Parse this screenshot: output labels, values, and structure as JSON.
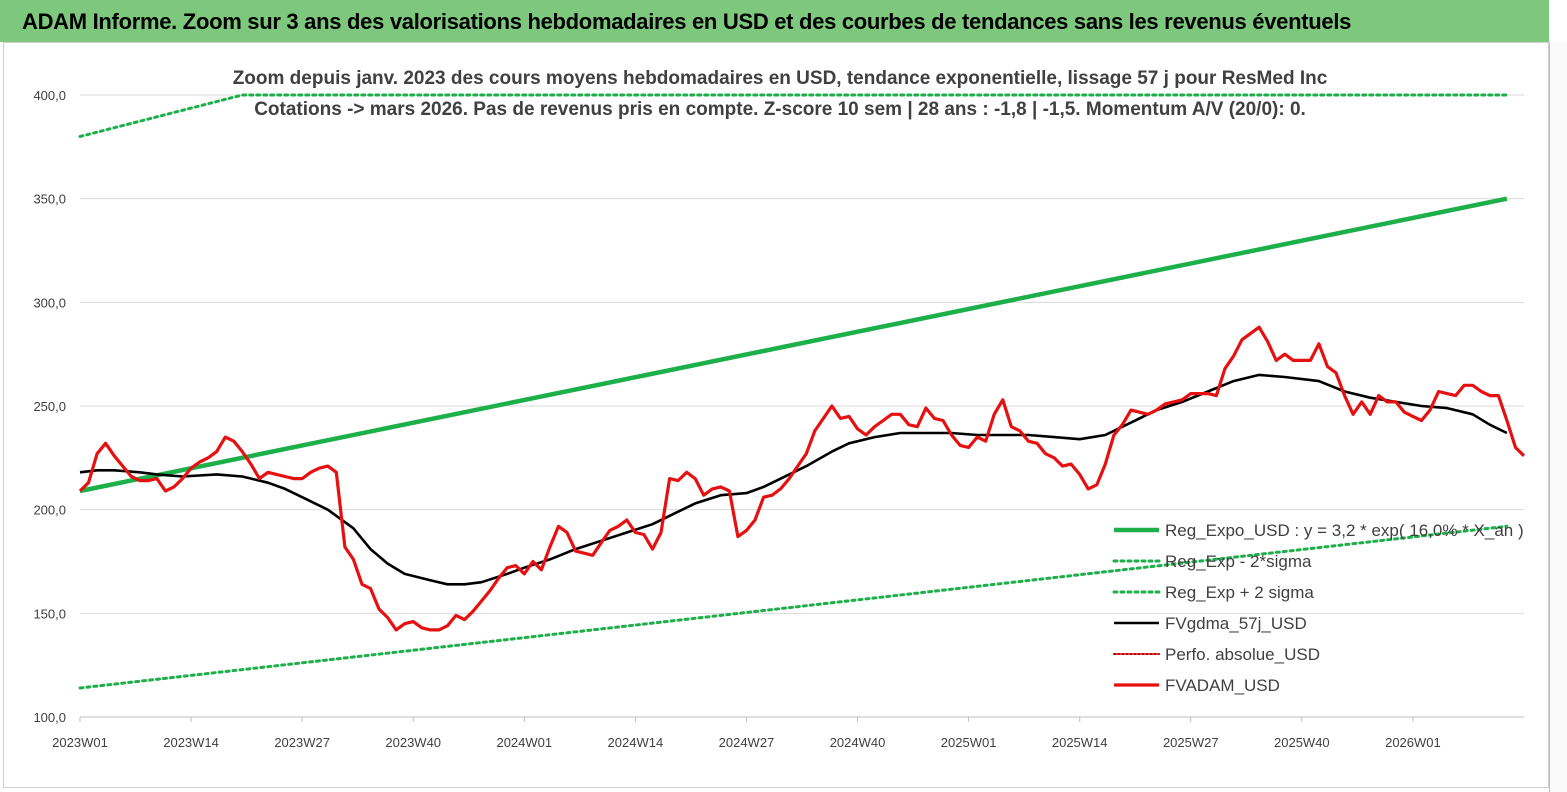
{
  "banner": {
    "title": "ADAM Informe. Zoom sur 3 ans des valorisations hebdomadaires en USD et des courbes de tendances sans les revenus éventuels"
  },
  "colors": {
    "banner": "#7dc87d",
    "reg_expo": "#1daf4a",
    "sigma": "#1daf4a",
    "fvgdma": "#000000",
    "perfo": "#c00000",
    "fvadam": "#e61010"
  },
  "chart_data": {
    "type": "line",
    "subtitle_lines": [
      "Zoom depuis janv. 2023 des cours moyens hebdomadaires en USD, tendance exponentielle, lissage 57 j pour ResMed Inc",
      "Cotations -> mars 2026. Pas de revenus pris en compte. Z-score 10 sem  | 28 ans : -1,8 | -1,5. Momentum A/V (20/0): 0."
    ],
    "x_range": [
      1,
      168
    ],
    "x_ticks": [
      {
        "x": 1,
        "label": "2023W01"
      },
      {
        "x": 14,
        "label": "2023W14"
      },
      {
        "x": 27,
        "label": "2023W27"
      },
      {
        "x": 40,
        "label": "2023W40"
      },
      {
        "x": 53,
        "label": "2024W01"
      },
      {
        "x": 66,
        "label": "2024W14"
      },
      {
        "x": 79,
        "label": "2024W27"
      },
      {
        "x": 92,
        "label": "2024W40"
      },
      {
        "x": 105,
        "label": "2025W01"
      },
      {
        "x": 118,
        "label": "2025W14"
      },
      {
        "x": 131,
        "label": "2025W27"
      },
      {
        "x": 144,
        "label": "2025W40"
      },
      {
        "x": 157,
        "label": "2026W01"
      }
    ],
    "ylim": [
      100,
      400
    ],
    "y_ticks": [
      {
        "value": 100,
        "label": "100,0"
      },
      {
        "value": 150,
        "label": "150,0"
      },
      {
        "value": 200,
        "label": "200,0"
      },
      {
        "value": 250,
        "label": "250,0"
      },
      {
        "value": 300,
        "label": "300,0"
      },
      {
        "value": 350,
        "label": "350,0"
      },
      {
        "value": 400,
        "label": "400,0"
      }
    ],
    "grid": "horizontal",
    "legend_position": "bottom-right",
    "series": [
      {
        "name": "Reg_Expo_USD : y = 3,2 * exp( 16,0% * X_an )",
        "style": "solid-thick",
        "color": "#1daf4a",
        "points": [
          [
            1,
            209
          ],
          [
            168,
            350
          ]
        ]
      },
      {
        "name": "Reg_Exp - 2*sigma",
        "style": "dotted",
        "color": "#1daf4a",
        "points": [
          [
            1,
            114
          ],
          [
            168,
            192
          ]
        ]
      },
      {
        "name": "Reg_Exp + 2 sigma",
        "style": "dotted",
        "color": "#1daf4a",
        "points": [
          [
            1,
            380
          ],
          [
            20,
            400
          ],
          [
            168,
            400
          ]
        ]
      },
      {
        "name": "FVgdma_57j_USD",
        "style": "solid",
        "color": "#000000",
        "points": [
          [
            1,
            218
          ],
          [
            3,
            219
          ],
          [
            5,
            219
          ],
          [
            8,
            218
          ],
          [
            10,
            217
          ],
          [
            13,
            216
          ],
          [
            17,
            217
          ],
          [
            20,
            216
          ],
          [
            23,
            213
          ],
          [
            25,
            210
          ],
          [
            27,
            206
          ],
          [
            30,
            200
          ],
          [
            33,
            191
          ],
          [
            35,
            181
          ],
          [
            37,
            174
          ],
          [
            39,
            169
          ],
          [
            42,
            166
          ],
          [
            44,
            164
          ],
          [
            46,
            164
          ],
          [
            48,
            165
          ],
          [
            51,
            169
          ],
          [
            53,
            172
          ],
          [
            56,
            176
          ],
          [
            59,
            181
          ],
          [
            62,
            185
          ],
          [
            65,
            189
          ],
          [
            68,
            193
          ],
          [
            71,
            199
          ],
          [
            73,
            203
          ],
          [
            76,
            207
          ],
          [
            79,
            208
          ],
          [
            81,
            211
          ],
          [
            84,
            217
          ],
          [
            86,
            221
          ],
          [
            89,
            228
          ],
          [
            91,
            232
          ],
          [
            94,
            235
          ],
          [
            97,
            237
          ],
          [
            100,
            237
          ],
          [
            103,
            237
          ],
          [
            106,
            236
          ],
          [
            109,
            236
          ],
          [
            112,
            236
          ],
          [
            115,
            235
          ],
          [
            118,
            234
          ],
          [
            121,
            236
          ],
          [
            124,
            242
          ],
          [
            127,
            248
          ],
          [
            130,
            252
          ],
          [
            133,
            257
          ],
          [
            136,
            262
          ],
          [
            139,
            265
          ],
          [
            142,
            264
          ],
          [
            146,
            262
          ],
          [
            149,
            257
          ],
          [
            152,
            254
          ],
          [
            155,
            252
          ],
          [
            158,
            250
          ],
          [
            161,
            249
          ],
          [
            164,
            246
          ],
          [
            166,
            241
          ],
          [
            168,
            237
          ]
        ]
      },
      {
        "name": "Perfo. absolue_USD",
        "style": "dotted-thin",
        "color": "#c00000",
        "points": []
      },
      {
        "name": "FVADAM_USD",
        "style": "solid-thick",
        "color": "#e61010",
        "points": [
          [
            1,
            209
          ],
          [
            2,
            213
          ],
          [
            3,
            227
          ],
          [
            4,
            232
          ],
          [
            5,
            226
          ],
          [
            6,
            221
          ],
          [
            7,
            216
          ],
          [
            8,
            214
          ],
          [
            9,
            214
          ],
          [
            10,
            215
          ],
          [
            11,
            209
          ],
          [
            12,
            211
          ],
          [
            13,
            215
          ],
          [
            14,
            220
          ],
          [
            15,
            223
          ],
          [
            16,
            225
          ],
          [
            17,
            228
          ],
          [
            18,
            235
          ],
          [
            19,
            233
          ],
          [
            20,
            228
          ],
          [
            21,
            222
          ],
          [
            22,
            215
          ],
          [
            23,
            218
          ],
          [
            24,
            217
          ],
          [
            25,
            216
          ],
          [
            26,
            215
          ],
          [
            27,
            215
          ],
          [
            28,
            218
          ],
          [
            29,
            220
          ],
          [
            30,
            221
          ],
          [
            31,
            218
          ],
          [
            32,
            182
          ],
          [
            33,
            176
          ],
          [
            34,
            164
          ],
          [
            35,
            162
          ],
          [
            36,
            152
          ],
          [
            37,
            148
          ],
          [
            38,
            142
          ],
          [
            39,
            145
          ],
          [
            40,
            146
          ],
          [
            41,
            143
          ],
          [
            42,
            142
          ],
          [
            43,
            142
          ],
          [
            44,
            144
          ],
          [
            45,
            149
          ],
          [
            46,
            147
          ],
          [
            47,
            151
          ],
          [
            48,
            156
          ],
          [
            49,
            161
          ],
          [
            50,
            167
          ],
          [
            51,
            172
          ],
          [
            52,
            173
          ],
          [
            53,
            169
          ],
          [
            54,
            175
          ],
          [
            55,
            171
          ],
          [
            56,
            182
          ],
          [
            57,
            192
          ],
          [
            58,
            189
          ],
          [
            59,
            180
          ],
          [
            60,
            179
          ],
          [
            61,
            178
          ],
          [
            62,
            184
          ],
          [
            63,
            190
          ],
          [
            64,
            192
          ],
          [
            65,
            195
          ],
          [
            66,
            189
          ],
          [
            67,
            188
          ],
          [
            68,
            181
          ],
          [
            69,
            189
          ],
          [
            70,
            215
          ],
          [
            71,
            214
          ],
          [
            72,
            218
          ],
          [
            73,
            215
          ],
          [
            74,
            207
          ],
          [
            75,
            210
          ],
          [
            76,
            211
          ],
          [
            77,
            209
          ],
          [
            78,
            187
          ],
          [
            79,
            190
          ],
          [
            80,
            195
          ],
          [
            81,
            206
          ],
          [
            82,
            207
          ],
          [
            83,
            210
          ],
          [
            84,
            215
          ],
          [
            85,
            221
          ],
          [
            86,
            227
          ],
          [
            87,
            238
          ],
          [
            88,
            244
          ],
          [
            89,
            250
          ],
          [
            90,
            244
          ],
          [
            91,
            245
          ],
          [
            92,
            239
          ],
          [
            93,
            236
          ],
          [
            94,
            240
          ],
          [
            95,
            243
          ],
          [
            96,
            246
          ],
          [
            97,
            246
          ],
          [
            98,
            241
          ],
          [
            99,
            240
          ],
          [
            100,
            249
          ],
          [
            101,
            244
          ],
          [
            102,
            243
          ],
          [
            103,
            236
          ],
          [
            104,
            231
          ],
          [
            105,
            230
          ],
          [
            106,
            235
          ],
          [
            107,
            233
          ],
          [
            108,
            246
          ],
          [
            109,
            253
          ],
          [
            110,
            240
          ],
          [
            111,
            238
          ],
          [
            112,
            233
          ],
          [
            113,
            232
          ],
          [
            114,
            227
          ],
          [
            115,
            225
          ],
          [
            116,
            221
          ],
          [
            117,
            222
          ],
          [
            118,
            217
          ],
          [
            119,
            210
          ],
          [
            120,
            212
          ],
          [
            121,
            222
          ],
          [
            122,
            236
          ],
          [
            123,
            241
          ],
          [
            124,
            248
          ],
          [
            125,
            247
          ],
          [
            126,
            246
          ],
          [
            127,
            248
          ],
          [
            128,
            251
          ],
          [
            129,
            252
          ],
          [
            130,
            253
          ],
          [
            131,
            256
          ],
          [
            132,
            256
          ],
          [
            133,
            256
          ],
          [
            134,
            255
          ],
          [
            135,
            268
          ],
          [
            136,
            274
          ],
          [
            137,
            282
          ],
          [
            138,
            285
          ],
          [
            139,
            288
          ],
          [
            140,
            281
          ],
          [
            141,
            272
          ],
          [
            142,
            275
          ],
          [
            143,
            272
          ],
          [
            144,
            272
          ],
          [
            145,
            272
          ],
          [
            146,
            280
          ],
          [
            147,
            269
          ],
          [
            148,
            266
          ],
          [
            149,
            255
          ],
          [
            150,
            246
          ],
          [
            151,
            252
          ],
          [
            152,
            246
          ],
          [
            153,
            255
          ],
          [
            154,
            252
          ],
          [
            155,
            252
          ],
          [
            156,
            247
          ],
          [
            157,
            245
          ],
          [
            158,
            243
          ],
          [
            159,
            248
          ],
          [
            160,
            257
          ],
          [
            161,
            256
          ],
          [
            162,
            255
          ],
          [
            163,
            260
          ],
          [
            164,
            260
          ],
          [
            165,
            257
          ],
          [
            166,
            255
          ],
          [
            167,
            255
          ],
          [
            168,
            243
          ],
          [
            169,
            230
          ],
          [
            170,
            226
          ]
        ]
      }
    ]
  }
}
